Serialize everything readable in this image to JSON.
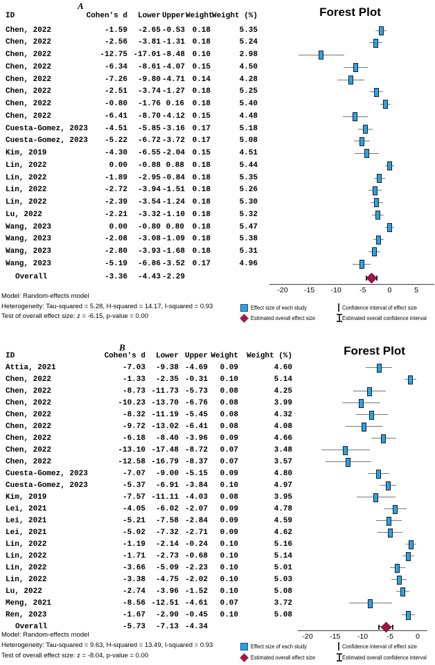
{
  "legend": {
    "effect_size": "Effect size of each study",
    "ci": "Confidence interval of effect size",
    "overall_effect": "Estimated overall effect size",
    "overall_ci": "Estimated overall confidence interval"
  },
  "colors": {
    "marker_fill": "#29A3E6",
    "marker_border": "#1C1C1C",
    "ci_line": "#777777",
    "diamond_fill": "#A4164A",
    "diamond_border": "#731033",
    "axis_line": "#3C3C3C"
  },
  "chart_data": [
    {
      "type": "forest",
      "panel_label": "A",
      "title": "Forest Plot",
      "columns": {
        "id": "ID",
        "d": "Cohen's d",
        "lower": "Lower",
        "upper": "Upper",
        "weight": "Weight",
        "weight_pct": "Weight (%)"
      },
      "axis_ticks": [
        -20,
        -15,
        -10,
        -5,
        0,
        5
      ],
      "xlim": [
        -22.5,
        8.4
      ],
      "studies": [
        {
          "id": "Chen, 2022",
          "d": -1.59,
          "lower": -2.65,
          "upper": -0.53,
          "weight": 0.18,
          "weight_pct": 5.35
        },
        {
          "id": "Chen, 2022",
          "d": -2.56,
          "lower": -3.81,
          "upper": -1.31,
          "weight": 0.18,
          "weight_pct": 5.24
        },
        {
          "id": "Chen, 2022",
          "d": -12.75,
          "lower": -17.01,
          "upper": -8.48,
          "weight": 0.1,
          "weight_pct": 2.98
        },
        {
          "id": "Chen, 2022",
          "d": -6.34,
          "lower": -8.61,
          "upper": -4.07,
          "weight": 0.15,
          "weight_pct": 4.5
        },
        {
          "id": "Chen, 2022",
          "d": -7.26,
          "lower": -9.8,
          "upper": -4.71,
          "weight": 0.14,
          "weight_pct": 4.28
        },
        {
          "id": "Chen, 2022",
          "d": -2.51,
          "lower": -3.74,
          "upper": -1.27,
          "weight": 0.18,
          "weight_pct": 5.25
        },
        {
          "id": "Chen, 2022",
          "d": -0.8,
          "lower": -1.76,
          "upper": 0.16,
          "weight": 0.18,
          "weight_pct": 5.4
        },
        {
          "id": "Chen, 2022",
          "d": -6.41,
          "lower": -8.7,
          "upper": -4.12,
          "weight": 0.15,
          "weight_pct": 4.48
        },
        {
          "id": "Cuesta-Gomez, 2023",
          "d": -4.51,
          "lower": -5.85,
          "upper": -3.16,
          "weight": 0.17,
          "weight_pct": 5.18
        },
        {
          "id": "Cuesta-Gomez, 2023",
          "d": -5.22,
          "lower": -6.72,
          "upper": -3.72,
          "weight": 0.17,
          "weight_pct": 5.08
        },
        {
          "id": "Kim, 2019",
          "d": -4.3,
          "lower": -6.55,
          "upper": -2.04,
          "weight": 0.15,
          "weight_pct": 4.51
        },
        {
          "id": "Lin, 2022",
          "d": 0.0,
          "lower": -0.88,
          "upper": 0.88,
          "weight": 0.18,
          "weight_pct": 5.44
        },
        {
          "id": "Lin, 2022",
          "d": -1.89,
          "lower": -2.95,
          "upper": -0.84,
          "weight": 0.18,
          "weight_pct": 5.35
        },
        {
          "id": "Lin, 2022",
          "d": -2.72,
          "lower": -3.94,
          "upper": -1.51,
          "weight": 0.18,
          "weight_pct": 5.26
        },
        {
          "id": "Lin, 2022",
          "d": -2.39,
          "lower": -3.54,
          "upper": -1.24,
          "weight": 0.18,
          "weight_pct": 5.3
        },
        {
          "id": "Lu, 2022",
          "d": -2.21,
          "lower": -3.32,
          "upper": -1.1,
          "weight": 0.18,
          "weight_pct": 5.32
        },
        {
          "id": "Wang, 2023",
          "d": 0.0,
          "lower": -0.8,
          "upper": 0.8,
          "weight": 0.18,
          "weight_pct": 5.47
        },
        {
          "id": "Wang, 2023",
          "d": -2.08,
          "lower": -3.08,
          "upper": -1.09,
          "weight": 0.18,
          "weight_pct": 5.38
        },
        {
          "id": "Wang, 2023",
          "d": -2.8,
          "lower": -3.93,
          "upper": -1.68,
          "weight": 0.18,
          "weight_pct": 5.31
        },
        {
          "id": "Wang, 2023",
          "d": -5.19,
          "lower": -6.86,
          "upper": -3.52,
          "weight": 0.17,
          "weight_pct": 4.96
        }
      ],
      "overall": {
        "id": "Overall",
        "d": -3.36,
        "lower": -4.43,
        "upper": -2.29
      },
      "footer_lines": [
        "Model: Random-effects model",
        "Heterogeneity: Tau-squared = 5.28, H-squared = 14.17, I-squared = 0.93",
        "Test of overall effect size: z = -6.15, p-value = 0.00"
      ]
    },
    {
      "type": "forest",
      "panel_label": "B",
      "title": "Forest Plot",
      "columns": {
        "id": "ID",
        "d": "Cohen's d",
        "lower": "Lower",
        "upper": "Upper",
        "weight": "Weight",
        "weight_pct": "Weight (%)"
      },
      "axis_ticks": [
        -20,
        -15,
        -10,
        -5,
        0
      ],
      "xlim": [
        -21.8,
        1.8
      ],
      "studies": [
        {
          "id": "Attia, 2021",
          "d": -7.03,
          "lower": -9.38,
          "upper": -4.69,
          "weight": 0.09,
          "weight_pct": 4.6
        },
        {
          "id": "Chen, 2022",
          "d": -1.33,
          "lower": -2.35,
          "upper": -0.31,
          "weight": 0.1,
          "weight_pct": 5.14
        },
        {
          "id": "Chen, 2022",
          "d": -8.73,
          "lower": -11.73,
          "upper": -5.73,
          "weight": 0.08,
          "weight_pct": 4.25
        },
        {
          "id": "Chen, 2022",
          "d": -10.23,
          "lower": -13.7,
          "upper": -6.76,
          "weight": 0.08,
          "weight_pct": 3.99
        },
        {
          "id": "Chen, 2022",
          "d": -8.32,
          "lower": -11.19,
          "upper": -5.45,
          "weight": 0.08,
          "weight_pct": 4.32
        },
        {
          "id": "Chen, 2022",
          "d": -9.72,
          "lower": -13.02,
          "upper": -6.41,
          "weight": 0.08,
          "weight_pct": 4.08
        },
        {
          "id": "Chen, 2022",
          "d": -6.18,
          "lower": -8.4,
          "upper": -3.96,
          "weight": 0.09,
          "weight_pct": 4.66
        },
        {
          "id": "Chen, 2022",
          "d": -13.1,
          "lower": -17.48,
          "upper": -8.72,
          "weight": 0.07,
          "weight_pct": 3.48
        },
        {
          "id": "Chen, 2022",
          "d": -12.58,
          "lower": -16.79,
          "upper": -8.37,
          "weight": 0.07,
          "weight_pct": 3.57
        },
        {
          "id": "Cuesta-Gomez, 2023",
          "d": -7.07,
          "lower": -9.0,
          "upper": -5.15,
          "weight": 0.09,
          "weight_pct": 4.8
        },
        {
          "id": "Cuesta-Gomez, 2023",
          "d": -5.37,
          "lower": -6.91,
          "upper": -3.84,
          "weight": 0.1,
          "weight_pct": 4.97
        },
        {
          "id": "Kim, 2019",
          "d": -7.57,
          "lower": -11.11,
          "upper": -4.03,
          "weight": 0.08,
          "weight_pct": 3.95
        },
        {
          "id": "Lei, 2021",
          "d": -4.05,
          "lower": -6.02,
          "upper": -2.07,
          "weight": 0.09,
          "weight_pct": 4.78
        },
        {
          "id": "Lei, 2021",
          "d": -5.21,
          "lower": -7.58,
          "upper": -2.84,
          "weight": 0.09,
          "weight_pct": 4.59
        },
        {
          "id": "Lei, 2021",
          "d": -5.02,
          "lower": -7.32,
          "upper": -2.71,
          "weight": 0.09,
          "weight_pct": 4.62
        },
        {
          "id": "Lin, 2022",
          "d": -1.19,
          "lower": -2.14,
          "upper": -0.24,
          "weight": 0.1,
          "weight_pct": 5.16
        },
        {
          "id": "Lin, 2022",
          "d": -1.71,
          "lower": -2.73,
          "upper": -0.68,
          "weight": 0.1,
          "weight_pct": 5.14
        },
        {
          "id": "Lin, 2022",
          "d": -3.66,
          "lower": -5.09,
          "upper": -2.23,
          "weight": 0.1,
          "weight_pct": 5.01
        },
        {
          "id": "Lin, 2022",
          "d": -3.38,
          "lower": -4.75,
          "upper": -2.02,
          "weight": 0.1,
          "weight_pct": 5.03
        },
        {
          "id": "Lu, 2022",
          "d": -2.74,
          "lower": -3.96,
          "upper": -1.52,
          "weight": 0.1,
          "weight_pct": 5.08
        },
        {
          "id": "Meng, 2021",
          "d": -8.56,
          "lower": -12.51,
          "upper": -4.61,
          "weight": 0.07,
          "weight_pct": 3.72
        },
        {
          "id": "Ren, 2023",
          "d": -1.67,
          "lower": -2.9,
          "upper": -0.45,
          "weight": 0.1,
          "weight_pct": 5.08
        }
      ],
      "overall": {
        "id": "Overall",
        "d": -5.73,
        "lower": -7.13,
        "upper": -4.34
      },
      "footer_lines": [
        "Model: Random-effects model",
        "Heterogeneity: Tau-squared = 9.63, H-squared = 13.49, I-squared = 0.93",
        "Test of overall effect size: z = -8.04, p-value = 0.00"
      ]
    }
  ]
}
